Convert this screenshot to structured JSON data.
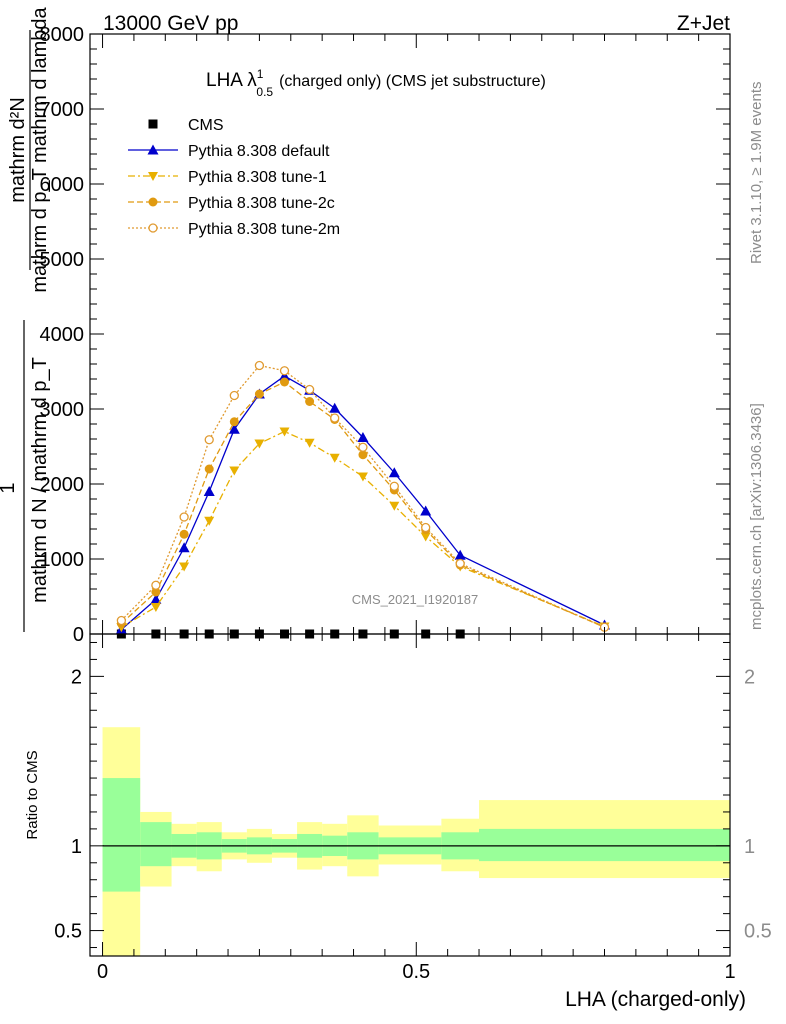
{
  "header": {
    "left": "13000 GeV pp",
    "right": "Z+Jet"
  },
  "side": {
    "rivet": "Rivet 3.1.10, ≥ 1.9M events",
    "mcplots": "mcplots.cern.ch [arXiv:1306.3436]"
  },
  "chart_data": [
    {
      "type": "line",
      "title_main": "LHA λ",
      "title_sup": "1",
      "title_sub": "0.5",
      "title_rest": "(charged only) (CMS jet substructure)",
      "ylabel_frac_top": "mathrm d²N",
      "ylabel_frac_bottom": "mathrm d p_T mathrm d lambda",
      "ylabel_prefix_num": "1",
      "ylabel_prefix_den": "mathrm d N / mathrm d p_T",
      "watermark": "CMS_2021_I1920187",
      "ylim": [
        0,
        8000
      ],
      "xlim": [
        -0.02,
        1.0
      ],
      "y_ticks": [
        0,
        1000,
        2000,
        3000,
        4000,
        5000,
        6000,
        7000,
        8000
      ],
      "y_tick_labels": [
        "0",
        "1000",
        "2000",
        "3000",
        "4000",
        "5000",
        "6000",
        "7000",
        "8000"
      ],
      "legend_placement": "top-left",
      "series": [
        {
          "name": "CMS",
          "color": "#000000",
          "style": "marker-square",
          "x": [
            0.03,
            0.085,
            0.13,
            0.17,
            0.21,
            0.25,
            0.29,
            0.33,
            0.37,
            0.415,
            0.465,
            0.515,
            0.57
          ],
          "values": [
            0,
            0,
            0,
            0,
            0,
            0,
            0,
            0,
            0,
            0,
            0,
            0,
            0
          ]
        },
        {
          "name": "Pythia 8.308 default",
          "color": "#0000cc",
          "style": "solid-triangle",
          "x": [
            0.03,
            0.085,
            0.13,
            0.17,
            0.21,
            0.25,
            0.29,
            0.33,
            0.37,
            0.415,
            0.465,
            0.515,
            0.57,
            0.8
          ],
          "values": [
            60,
            460,
            1150,
            1900,
            2730,
            3200,
            3440,
            3250,
            3010,
            2620,
            2150,
            1640,
            1050,
            120
          ]
        },
        {
          "name": "Pythia 8.308 tune-1",
          "color": "#e8b000",
          "style": "dashdot-invtriangle",
          "x": [
            0.03,
            0.085,
            0.13,
            0.17,
            0.21,
            0.25,
            0.29,
            0.33,
            0.37,
            0.415,
            0.465,
            0.515,
            0.57,
            0.8
          ],
          "values": [
            90,
            360,
            900,
            1510,
            2180,
            2540,
            2700,
            2550,
            2350,
            2100,
            1710,
            1300,
            900,
            100
          ]
        },
        {
          "name": "Pythia 8.308 tune-2c",
          "color": "#e09a10",
          "style": "dashed-circle",
          "x": [
            0.03,
            0.085,
            0.13,
            0.17,
            0.21,
            0.25,
            0.29,
            0.33,
            0.37,
            0.415,
            0.465,
            0.515,
            0.57,
            0.8
          ],
          "values": [
            140,
            560,
            1330,
            2200,
            2830,
            3200,
            3360,
            3100,
            2860,
            2390,
            1920,
            1390,
            920,
            90
          ]
        },
        {
          "name": "Pythia 8.308 tune-2m",
          "color": "#e09a30",
          "style": "dotted-opencircle",
          "x": [
            0.03,
            0.085,
            0.13,
            0.17,
            0.21,
            0.25,
            0.29,
            0.33,
            0.37,
            0.415,
            0.465,
            0.515,
            0.57,
            0.8
          ],
          "values": [
            180,
            650,
            1560,
            2590,
            3180,
            3580,
            3510,
            3260,
            2880,
            2490,
            1970,
            1420,
            940,
            90
          ]
        }
      ]
    },
    {
      "type": "area",
      "ylabel": "Ratio to CMS",
      "xlabel": "LHA (charged-only)",
      "ylim": [
        0.35,
        2.25
      ],
      "xlim": [
        -0.02,
        1.0
      ],
      "y_ticks": [
        0.5,
        1,
        2
      ],
      "y_tick_labels": [
        "0.5",
        "1",
        "2"
      ],
      "x_ticks": [
        0,
        0.5,
        1
      ],
      "x_tick_labels": [
        "0",
        "0.5",
        "1"
      ],
      "bins": [
        {
          "x0": 0.0,
          "x1": 0.06,
          "stat_lo": 0.73,
          "stat_hi": 1.4,
          "tot_lo": 0.35,
          "tot_hi": 1.7
        },
        {
          "x0": 0.06,
          "x1": 0.11,
          "stat_lo": 0.88,
          "stat_hi": 1.14,
          "tot_lo": 0.76,
          "tot_hi": 1.2
        },
        {
          "x0": 0.11,
          "x1": 0.15,
          "stat_lo": 0.93,
          "stat_hi": 1.07,
          "tot_lo": 0.88,
          "tot_hi": 1.13
        },
        {
          "x0": 0.15,
          "x1": 0.19,
          "stat_lo": 0.92,
          "stat_hi": 1.08,
          "tot_lo": 0.85,
          "tot_hi": 1.14
        },
        {
          "x0": 0.19,
          "x1": 0.23,
          "stat_lo": 0.96,
          "stat_hi": 1.04,
          "tot_lo": 0.92,
          "tot_hi": 1.08
        },
        {
          "x0": 0.23,
          "x1": 0.27,
          "stat_lo": 0.95,
          "stat_hi": 1.05,
          "tot_lo": 0.9,
          "tot_hi": 1.1
        },
        {
          "x0": 0.27,
          "x1": 0.31,
          "stat_lo": 0.96,
          "stat_hi": 1.04,
          "tot_lo": 0.93,
          "tot_hi": 1.07
        },
        {
          "x0": 0.31,
          "x1": 0.35,
          "stat_lo": 0.93,
          "stat_hi": 1.07,
          "tot_lo": 0.86,
          "tot_hi": 1.14
        },
        {
          "x0": 0.35,
          "x1": 0.39,
          "stat_lo": 0.94,
          "stat_hi": 1.06,
          "tot_lo": 0.88,
          "tot_hi": 1.13
        },
        {
          "x0": 0.39,
          "x1": 0.44,
          "stat_lo": 0.92,
          "stat_hi": 1.08,
          "tot_lo": 0.82,
          "tot_hi": 1.18
        },
        {
          "x0": 0.44,
          "x1": 0.49,
          "stat_lo": 0.95,
          "stat_hi": 1.05,
          "tot_lo": 0.89,
          "tot_hi": 1.12
        },
        {
          "x0": 0.49,
          "x1": 0.54,
          "stat_lo": 0.95,
          "stat_hi": 1.05,
          "tot_lo": 0.89,
          "tot_hi": 1.12
        },
        {
          "x0": 0.54,
          "x1": 0.6,
          "stat_lo": 0.92,
          "stat_hi": 1.08,
          "tot_lo": 0.85,
          "tot_hi": 1.16
        },
        {
          "x0": 0.6,
          "x1": 1.0,
          "stat_lo": 0.91,
          "stat_hi": 1.1,
          "tot_lo": 0.81,
          "tot_hi": 1.27
        }
      ],
      "band_colors": {
        "stat": "#99ff99",
        "total": "#ffff99"
      },
      "reference_line": 1
    }
  ]
}
